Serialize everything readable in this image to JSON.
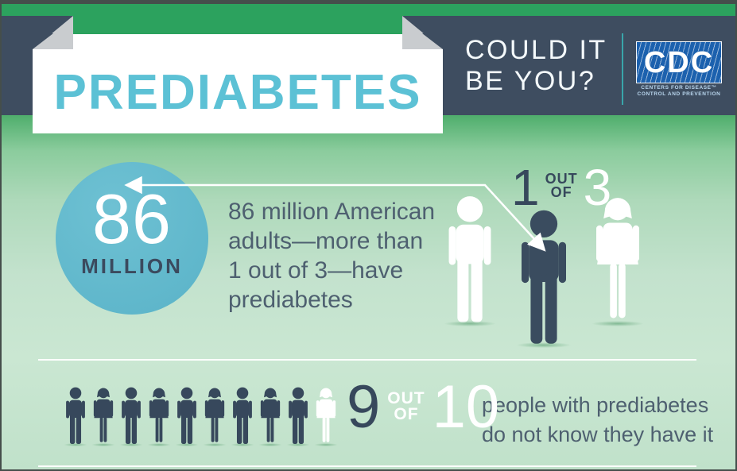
{
  "header": {
    "title": "PREDIABETES",
    "tagline_line1": "COULD IT",
    "tagline_line2": "BE YOU?",
    "cdc": {
      "acronym": "CDC",
      "name_line1": "CENTERS FOR DISEASE™",
      "name_line2": "CONTROL AND PREVENTION"
    }
  },
  "stat_86": {
    "value": "86",
    "unit": "MILLION",
    "description": "86 million American adults—more than 1 out of 3—have prediabetes",
    "lines": [
      "86 million American",
      "adults—more than",
      "1 out of 3—have",
      "prediabetes"
    ],
    "ratio": {
      "numerator": "1",
      "out": "OUT",
      "of": "OF",
      "denominator": "3"
    },
    "figures": [
      {
        "type": "man",
        "color": "#ffffff",
        "name": "figure-man-white"
      },
      {
        "type": "man",
        "color": "#3a4c5f",
        "name": "figure-man-dark-highlighted"
      },
      {
        "type": "woman",
        "color": "#ffffff",
        "name": "figure-woman-white"
      }
    ]
  },
  "stat_9of10": {
    "ratio": {
      "numerator": "9",
      "out": "OUT",
      "of": "OF",
      "denominator": "10"
    },
    "caption_line1": "people with prediabetes",
    "caption_line2": "do not know they have it",
    "figures": [
      {
        "type": "man",
        "color": "#37485c",
        "name": "pictograph-person-1"
      },
      {
        "type": "woman",
        "color": "#37485c",
        "name": "pictograph-person-2"
      },
      {
        "type": "man",
        "color": "#37485c",
        "name": "pictograph-person-3"
      },
      {
        "type": "woman",
        "color": "#37485c",
        "name": "pictograph-person-4"
      },
      {
        "type": "man",
        "color": "#37485c",
        "name": "pictograph-person-5"
      },
      {
        "type": "woman",
        "color": "#37485c",
        "name": "pictograph-person-6"
      },
      {
        "type": "man",
        "color": "#37485c",
        "name": "pictograph-person-7"
      },
      {
        "type": "woman",
        "color": "#37485c",
        "name": "pictograph-person-8"
      },
      {
        "type": "man",
        "color": "#37485c",
        "name": "pictograph-person-9"
      },
      {
        "type": "woman",
        "color": "#ffffff",
        "name": "pictograph-person-10-white"
      }
    ]
  },
  "chart_data": [
    {
      "type": "pictograph",
      "title": "1 out of 3",
      "highlighted": 1,
      "total": 3,
      "statement": "86 million American adults—more than 1 out of 3—have prediabetes",
      "value_label": "86 MILLION"
    },
    {
      "type": "pictograph",
      "title": "9 out of 10",
      "highlighted": 9,
      "total": 10,
      "statement": "people with prediabetes do not know they have it"
    }
  ],
  "colors": {
    "top_bar_green": "#2ca25e",
    "header_slate": "#3e4d60",
    "title_blue": "#5cc1d5",
    "ribbon_fold_gray": "#c9cccf",
    "divider_teal": "#39a6ab",
    "cdc_logo_blue": "#1c61ae",
    "circle_blue": "#5fb8cc",
    "figure_navy": "#37485c",
    "body_text_slate": "#4e6070",
    "background_green_top": "#4fae6c",
    "background_green_bottom": "#c0e1ca"
  }
}
